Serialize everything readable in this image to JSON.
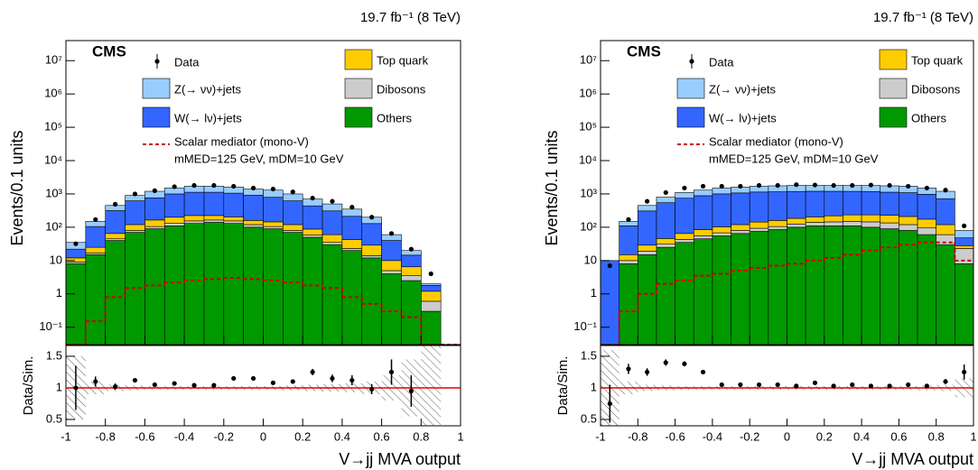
{
  "chart_data": [
    {
      "type": "histogram",
      "cms": "CMS",
      "lumi": "19.7 fb⁻¹ (8 TeV)",
      "ylabel": "Events/0.1 units",
      "ratio_ylabel": "Data/Sim.",
      "xlabel": "V→jj MVA output",
      "log_y": true,
      "bins": [
        -1,
        -0.9,
        -0.8,
        -0.7,
        -0.6,
        -0.5,
        -0.4,
        -0.3,
        -0.2,
        -0.1,
        0,
        0.1,
        0.2,
        0.3,
        0.4,
        0.5,
        0.6,
        0.7,
        0.8,
        0.9,
        1
      ],
      "xlim": [
        -1,
        1
      ],
      "xticks": [
        -1,
        -0.8,
        -0.6,
        -0.4,
        -0.2,
        0,
        0.2,
        0.4,
        0.6,
        0.8,
        1
      ],
      "ylim": [
        0.03,
        40000000
      ],
      "yticks": [
        {
          "value": 0.1,
          "label": "10⁻¹"
        },
        1,
        10,
        {
          "value": 100,
          "label": "10²"
        },
        {
          "value": 1000,
          "label": "10³"
        },
        {
          "value": 10000,
          "label": "10⁴"
        },
        {
          "value": 100000,
          "label": "10⁵"
        },
        {
          "value": 1000000,
          "label": "10⁶"
        },
        {
          "value": 10000000,
          "label": "10⁷"
        }
      ],
      "series": [
        {
          "name": "Others",
          "color": "#009900",
          "values": [
            8,
            15,
            40,
            70,
            90,
            110,
            130,
            140,
            130,
            100,
            90,
            70,
            50,
            30,
            20,
            12,
            4,
            2.5,
            0.3,
            0
          ]
        },
        {
          "name": "Dibosons",
          "color": "#cccccc",
          "values": [
            1,
            2,
            5,
            10,
            15,
            20,
            25,
            25,
            25,
            20,
            15,
            10,
            8,
            5,
            3,
            2,
            1,
            1,
            0.3,
            0
          ]
        },
        {
          "name": "Top quark",
          "color": "#ffcc00",
          "values": [
            3,
            8,
            20,
            40,
            60,
            70,
            70,
            60,
            50,
            40,
            40,
            40,
            30,
            25,
            20,
            15,
            5,
            3,
            0.6,
            0
          ]
        },
        {
          "name": "W(→ lν)+jets",
          "color": "#3366ff",
          "values": [
            10,
            80,
            250,
            500,
            600,
            800,
            900,
            900,
            850,
            750,
            650,
            500,
            350,
            250,
            170,
            100,
            30,
            8,
            0.6,
            0
          ]
        },
        {
          "name": "Z(→ νν)+jets",
          "color": "#99ccff",
          "values": [
            13,
            45,
            135,
            280,
            435,
            500,
            575,
            575,
            545,
            490,
            505,
            380,
            262,
            190,
            137,
            71,
            20,
            5.5,
            0.2,
            0
          ]
        }
      ],
      "data": {
        "name": "Data",
        "values": [
          32,
          170,
          490,
          1000,
          1250,
          1650,
          1800,
          1800,
          1700,
          1500,
          1400,
          1150,
          750,
          600,
          400,
          200,
          65,
          22,
          4,
          null
        ]
      },
      "signal": {
        "name": "Scalar mediator (mono-V)",
        "note": "mMED=125 GeV, mDM=10 GeV",
        "color": "#cc0000",
        "values": [
          0.03,
          0.15,
          0.8,
          1.5,
          1.8,
          2.2,
          2.5,
          2.8,
          3,
          2.8,
          2.5,
          2.2,
          1.8,
          1.5,
          0.8,
          0.5,
          0.3,
          0.2,
          0.03,
          0.03
        ]
      },
      "ratio_ylim": [
        0.4,
        1.67
      ],
      "ratio_yticks": [
        0.5,
        1,
        1.5
      ],
      "ratio_values": [
        1.0,
        1.1,
        1.02,
        1.12,
        1.05,
        1.07,
        1.04,
        1.04,
        1.15,
        1.15,
        1.08,
        1.1,
        1.25,
        1.15,
        1.12,
        0.98,
        1.25,
        0.95,
        null,
        null
      ],
      "ratio_errors": [
        0.35,
        0.08,
        0.05,
        0.03,
        0.03,
        0.02,
        0.02,
        0.02,
        0.02,
        0.02,
        0.02,
        0.03,
        0.05,
        0.06,
        0.08,
        0.08,
        0.2,
        0.25,
        null,
        null
      ],
      "ratio_uncertainty": [
        0.5,
        0.1,
        0.05,
        0.04,
        0.03,
        0.03,
        0.03,
        0.03,
        0.03,
        0.03,
        0.03,
        0.04,
        0.05,
        0.06,
        0.07,
        0.1,
        0.2,
        0.45,
        0.8,
        null
      ]
    },
    {
      "type": "histogram",
      "cms": "CMS",
      "lumi": "19.7 fb⁻¹ (8 TeV)",
      "ylabel": "Events/0.1 units",
      "ratio_ylabel": "Data/Sim.",
      "xlabel": "V→jj MVA output",
      "log_y": true,
      "bins": [
        -1,
        -0.9,
        -0.8,
        -0.7,
        -0.6,
        -0.5,
        -0.4,
        -0.3,
        -0.2,
        -0.1,
        0,
        0.1,
        0.2,
        0.3,
        0.4,
        0.5,
        0.6,
        0.7,
        0.8,
        0.9,
        1
      ],
      "xlim": [
        -1,
        1
      ],
      "xticks": [
        -1,
        -0.8,
        -0.6,
        -0.4,
        -0.2,
        0,
        0.2,
        0.4,
        0.6,
        0.8,
        1
      ],
      "ylim": [
        0.03,
        40000000
      ],
      "yticks": [
        {
          "value": 0.1,
          "label": "10⁻¹"
        },
        1,
        10,
        {
          "value": 100,
          "label": "10²"
        },
        {
          "value": 1000,
          "label": "10³"
        },
        {
          "value": 10000,
          "label": "10⁴"
        },
        {
          "value": 100000,
          "label": "10⁵"
        },
        {
          "value": 1000000,
          "label": "10⁶"
        },
        {
          "value": 10000000,
          "label": "10⁷"
        }
      ],
      "series": [
        {
          "name": "Others",
          "color": "#009900",
          "values": [
            0,
            8,
            15,
            25,
            35,
            45,
            55,
            65,
            75,
            85,
            100,
            110,
            110,
            110,
            100,
            90,
            80,
            60,
            30,
            8
          ]
        },
        {
          "name": "Dibosons",
          "color": "#cccccc",
          "values": [
            0,
            2,
            4,
            6,
            8,
            10,
            13,
            15,
            18,
            20,
            25,
            30,
            35,
            40,
            45,
            45,
            40,
            35,
            30,
            15
          ]
        },
        {
          "name": "Top quark",
          "color": "#ffcc00",
          "values": [
            0,
            5,
            10,
            15,
            22,
            30,
            35,
            40,
            50,
            55,
            60,
            65,
            75,
            85,
            90,
            95,
            90,
            80,
            60,
            5
          ]
        },
        {
          "name": "W(→ lν)+jets",
          "color": "#3366ff",
          "values": [
            10,
            95,
            280,
            500,
            680,
            800,
            900,
            950,
            1000,
            1000,
            1000,
            1000,
            980,
            960,
            950,
            900,
            880,
            800,
            600,
            20
          ]
        },
        {
          "name": "Z(→ νν)+jets",
          "color": "#99ccff",
          "values": [
            0,
            40,
            141,
            254,
            355,
            415,
            497,
            530,
            557,
            590,
            615,
            595,
            600,
            605,
            615,
            620,
            610,
            525,
            480,
            32
          ]
        }
      ],
      "data": {
        "name": "Data",
        "values": [
          7,
          170,
          600,
          1100,
          1500,
          1700,
          1700,
          1700,
          1800,
          1800,
          1900,
          1850,
          1800,
          1800,
          1850,
          1800,
          1700,
          1500,
          1300,
          110
        ]
      },
      "signal": {
        "name": "Scalar mediator (mono-V)",
        "note": "mMED=125 GeV, mDM=10 GeV",
        "color": "#cc0000",
        "values": [
          0.03,
          0.3,
          1,
          2,
          2.5,
          3.5,
          4,
          5,
          6,
          7,
          8,
          10,
          12,
          15,
          20,
          25,
          30,
          35,
          35,
          10
        ]
      },
      "ratio_ylim": [
        0.4,
        1.67
      ],
      "ratio_yticks": [
        0.5,
        1,
        1.5
      ],
      "ratio_values": [
        0.75,
        1.3,
        1.25,
        1.4,
        1.38,
        1.25,
        1.05,
        1.05,
        1.05,
        1.05,
        1.03,
        1.08,
        1.03,
        1.05,
        1.03,
        1.03,
        1.05,
        1.03,
        1.1,
        1.25
      ],
      "ratio_errors": [
        0.3,
        0.08,
        0.06,
        0.05,
        0.04,
        0.03,
        0.02,
        0.02,
        0.02,
        0.02,
        0.02,
        0.02,
        0.02,
        0.02,
        0.02,
        0.02,
        0.02,
        0.02,
        0.04,
        0.12
      ],
      "ratio_uncertainty": [
        0.6,
        0.1,
        0.05,
        0.04,
        0.03,
        0.03,
        0.03,
        0.03,
        0.03,
        0.03,
        0.03,
        0.03,
        0.03,
        0.03,
        0.03,
        0.03,
        0.03,
        0.04,
        0.05,
        0.15
      ]
    }
  ]
}
